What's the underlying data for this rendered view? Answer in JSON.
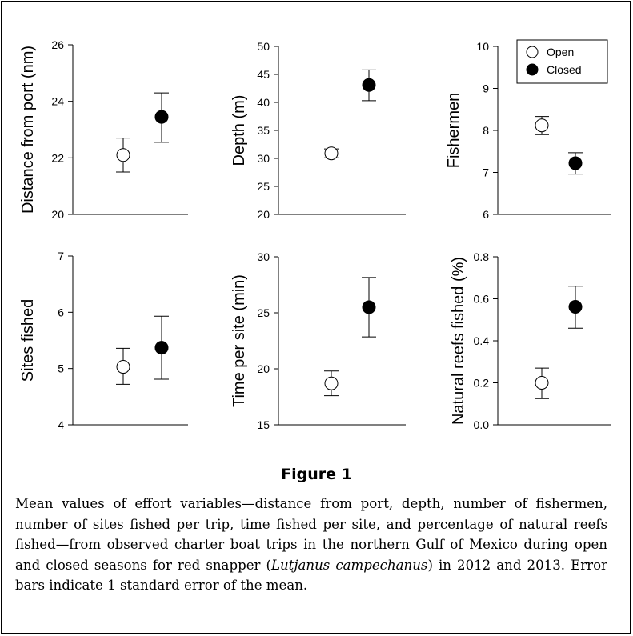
{
  "figure": {
    "title": "Figure 1",
    "caption_part1": "Mean values of effort variables—distance from port, depth, number of fishermen, number of sites fished per trip, time fished per site, and percentage of natural reefs fished—from observed charter boat trips in the northern Gulf of Mexico during open and closed seasons for red snapper (",
    "caption_species": "Lutjanus campechanus",
    "caption_part2": ") in 2012 and 2013. Error bars indicate 1 standard error of the mean."
  },
  "legend": {
    "placement": "top-right of third panel",
    "entries": [
      "Open",
      "Closed"
    ]
  },
  "colors": {
    "open_fill": "#ffffff",
    "closed_fill": "#000000",
    "stroke": "#000000"
  },
  "chart_data": [
    {
      "type": "scatter",
      "ylabel": "Distance from port (nm)",
      "ylim": [
        20,
        26
      ],
      "yticks": [
        "20",
        "22",
        "24",
        "26"
      ],
      "grid": false,
      "series": [
        {
          "name": "Open",
          "values": [
            22.1
          ],
          "err_low": [
            21.5
          ],
          "err_high": [
            22.7
          ]
        },
        {
          "name": "Closed",
          "values": [
            23.45
          ],
          "err_low": [
            22.55
          ],
          "err_high": [
            24.3
          ]
        }
      ]
    },
    {
      "type": "scatter",
      "ylabel": "Depth (m)",
      "ylim": [
        20,
        50
      ],
      "yticks": [
        "20",
        "25",
        "30",
        "35",
        "40",
        "45",
        "50"
      ],
      "grid": false,
      "series": [
        {
          "name": "Open",
          "values": [
            30.9
          ],
          "err_low": [
            30.1
          ],
          "err_high": [
            31.7
          ]
        },
        {
          "name": "Closed",
          "values": [
            43.1
          ],
          "err_low": [
            40.3
          ],
          "err_high": [
            45.8
          ]
        }
      ]
    },
    {
      "type": "scatter",
      "ylabel": "Fishermen",
      "ylim": [
        6,
        10
      ],
      "yticks": [
        "6",
        "7",
        "8",
        "9",
        "10"
      ],
      "grid": false,
      "series": [
        {
          "name": "Open",
          "values": [
            8.12
          ],
          "err_low": [
            7.9
          ],
          "err_high": [
            8.33
          ]
        },
        {
          "name": "Closed",
          "values": [
            7.22
          ],
          "err_low": [
            6.96
          ],
          "err_high": [
            7.47
          ]
        }
      ]
    },
    {
      "type": "scatter",
      "ylabel": "Sites fished",
      "ylim": [
        4,
        7
      ],
      "yticks": [
        "4",
        "5",
        "6",
        "7"
      ],
      "grid": false,
      "series": [
        {
          "name": "Open",
          "values": [
            5.03
          ],
          "err_low": [
            4.72
          ],
          "err_high": [
            5.36
          ]
        },
        {
          "name": "Closed",
          "values": [
            5.37
          ],
          "err_low": [
            4.81
          ],
          "err_high": [
            5.93
          ]
        }
      ]
    },
    {
      "type": "scatter",
      "ylabel": "Time per site (min)",
      "ylim": [
        15,
        30
      ],
      "yticks": [
        "15",
        "20",
        "25",
        "30"
      ],
      "grid": false,
      "series": [
        {
          "name": "Open",
          "values": [
            18.7
          ],
          "err_low": [
            17.6
          ],
          "err_high": [
            19.8
          ]
        },
        {
          "name": "Closed",
          "values": [
            25.5
          ],
          "err_low": [
            22.85
          ],
          "err_high": [
            28.15
          ]
        }
      ]
    },
    {
      "type": "scatter",
      "ylabel": "Natural reefs fished (%)",
      "ylim": [
        0,
        0.8
      ],
      "yticks": [
        "0.0",
        "0.2",
        "0.4",
        "0.6",
        "0.8"
      ],
      "grid": false,
      "series": [
        {
          "name": "Open",
          "values": [
            0.2
          ],
          "err_low": [
            0.125
          ],
          "err_high": [
            0.27
          ]
        },
        {
          "name": "Closed",
          "values": [
            0.562
          ],
          "err_low": [
            0.46
          ],
          "err_high": [
            0.66
          ]
        }
      ]
    }
  ]
}
